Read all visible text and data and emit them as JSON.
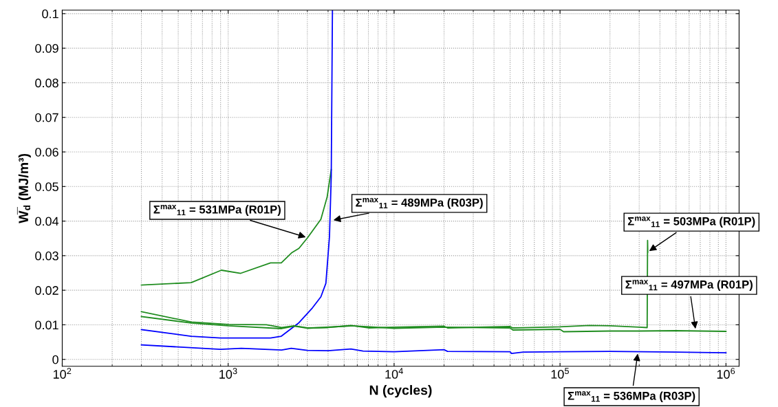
{
  "chart_data": {
    "type": "line",
    "xlabel": "N (cycles)",
    "ylabel": "W̅$_{d}$ (MJ/m³)",
    "log": "x",
    "grid": true,
    "xlim": [
      100,
      1200000
    ],
    "ylim": [
      -0.002,
      0.101
    ],
    "xticks": [
      {
        "value": 100,
        "label": "10$^{2}$"
      },
      {
        "value": 1000,
        "label": "10$^{3}$"
      },
      {
        "value": 10000,
        "label": "10$^{4}$"
      },
      {
        "value": 100000,
        "label": "10$^{5}$"
      },
      {
        "value": 1000000,
        "label": "10$^{6}$"
      }
    ],
    "yticks": [
      0,
      0.01,
      0.02,
      0.03,
      0.04,
      0.05,
      0.06,
      0.07,
      0.08,
      0.09,
      0.1
    ],
    "series": [
      {
        "color": "#1e8c1e",
        "x": [
          300,
          598,
          910,
          1190,
          1800,
          2090,
          2410,
          2670,
          3010,
          3620,
          3950,
          4180
        ],
        "values": [
          0.0215,
          0.0222,
          0.0258,
          0.0249,
          0.0279,
          0.0279,
          0.0308,
          0.0321,
          0.0352,
          0.0405,
          0.047,
          0.0549
        ]
      },
      {
        "color": "#0000ff",
        "x": [
          300,
          598,
          900,
          1800,
          2090,
          2670,
          3220,
          3620,
          3880,
          4080,
          4180,
          4250
        ],
        "values": [
          0.0086,
          0.0067,
          0.0062,
          0.0062,
          0.0067,
          0.0106,
          0.0149,
          0.0181,
          0.022,
          0.0356,
          0.053,
          0.101
        ]
      },
      {
        "color": "#1e8c1e",
        "x": [
          300,
          600,
          1000,
          1700,
          2100,
          2500,
          3000,
          4000,
          5500,
          7000,
          10000,
          20000,
          21000,
          50000,
          52000,
          100000,
          150000,
          200000,
          300000,
          335000,
          337000,
          338000
        ],
        "values": [
          0.0138,
          0.0108,
          0.0101,
          0.01,
          0.0092,
          0.0097,
          0.0091,
          0.0092,
          0.0098,
          0.0091,
          0.0093,
          0.0096,
          0.0091,
          0.0095,
          0.0091,
          0.0094,
          0.0098,
          0.0097,
          0.0093,
          0.0092,
          0.0344,
          0.031
        ]
      },
      {
        "color": "#1e8c1e",
        "x": [
          300,
          600,
          1000,
          2100,
          2500,
          3000,
          5500,
          10000,
          20000,
          50000,
          52000,
          100000,
          105000,
          200000,
          300000,
          500000,
          700000,
          1000000
        ],
        "values": [
          0.0124,
          0.0105,
          0.0097,
          0.0089,
          0.0096,
          0.009,
          0.0097,
          0.009,
          0.0093,
          0.0091,
          0.0085,
          0.0087,
          0.008,
          0.0082,
          0.0082,
          0.0083,
          0.0082,
          0.0081
        ]
      },
      {
        "color": "#0000ff",
        "x": [
          300,
          900,
          1200,
          2100,
          2400,
          3000,
          4000,
          5500,
          6500,
          10000,
          20000,
          21000,
          50000,
          51000,
          60000,
          100000,
          200000,
          500000,
          1000000
        ],
        "values": [
          0.0042,
          0.0029,
          0.0032,
          0.0027,
          0.0032,
          0.0026,
          0.0025,
          0.003,
          0.0024,
          0.0022,
          0.0028,
          0.0023,
          0.0022,
          0.0017,
          0.0021,
          0.0022,
          0.0023,
          0.0021,
          0.0019
        ]
      }
    ],
    "annotations": [
      {
        "text": "Σ$^{max}$$_{11}$ = 531MPa (R01P)",
        "x": 3010,
        "y": 0.0352
      },
      {
        "text": "Σ$^{max}$$_{11}$ = 489MPa (R03P)",
        "x": 4200,
        "y": 0.0402
      },
      {
        "text": "Σ$^{max}$$_{11}$ = 503MPa (R01P)",
        "x": 337000,
        "y": 0.031
      },
      {
        "text": "Σ$^{max}$$_{11}$ = 497MPa (R01P)",
        "x": 657000,
        "y": 0.0083
      },
      {
        "text": "Σ$^{max}$$_{11}$ = 536MPa (R03P)",
        "x": 295000,
        "y": 0.0022
      }
    ]
  }
}
